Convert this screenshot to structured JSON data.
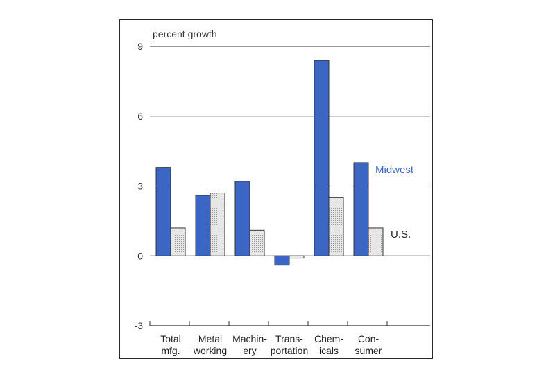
{
  "chart_data": {
    "type": "bar",
    "ylabel": "percent growth",
    "ylim": [
      -3,
      9
    ],
    "yticks": [
      9,
      6,
      3,
      0,
      -3
    ],
    "grid": true,
    "categories": [
      [
        "Total",
        "mfg."
      ],
      [
        "Metal",
        "working"
      ],
      [
        "Machin-",
        "ery"
      ],
      [
        "Trans-",
        "portation"
      ],
      [
        "Chem-",
        "icals"
      ],
      [
        "Con-",
        "sumer"
      ]
    ],
    "series": [
      {
        "name": "Midwest",
        "color": "#3b66c4",
        "values": [
          3.8,
          2.6,
          3.2,
          -0.4,
          8.4,
          4.0
        ]
      },
      {
        "name": "U.S.",
        "color": "#d9d9d9",
        "values": [
          1.2,
          2.7,
          1.1,
          -0.1,
          2.5,
          1.2
        ]
      }
    ]
  }
}
